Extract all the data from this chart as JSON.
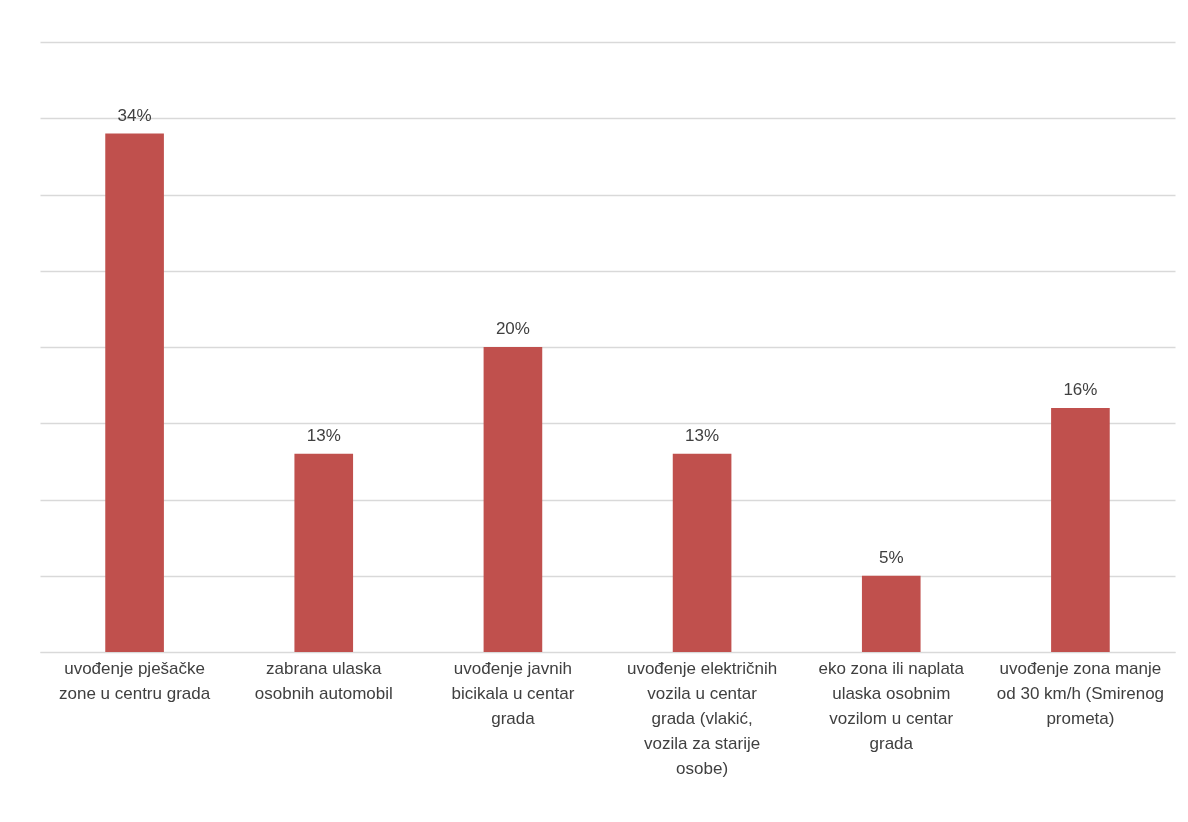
{
  "chart_data": {
    "type": "bar",
    "categories": [
      "uvođenje pješačke zone u centru grada",
      "zabrana ulaska osobnih automobil",
      "uvođenje javnih bicikala u centar grada",
      "uvođenje električnih vozila u centar grada (vlakić, vozila za starije osobe)",
      "eko zona ili naplata ulaska osobnim vozilom u centar grada",
      "uvođenje zona manje od 30 km/h (Smirenog prometa)"
    ],
    "values": [
      34,
      13,
      20,
      13,
      5,
      16
    ],
    "value_labels": [
      "34%",
      "13%",
      "20%",
      "13%",
      "5%",
      "16%"
    ],
    "color": "#c0504d",
    "ylim": [
      0,
      40
    ],
    "yticks": [
      {
        "value": 0,
        "label": null
      },
      {
        "value": 5,
        "label": null
      },
      {
        "value": 10,
        "label": null
      },
      {
        "value": 15,
        "label": null
      },
      {
        "value": 20,
        "label": null
      },
      {
        "value": 25,
        "label": null
      },
      {
        "value": 30,
        "label": null
      },
      {
        "value": 35,
        "label": null
      },
      {
        "value": 40,
        "label": null
      }
    ],
    "grid": "y",
    "tick_labels": "x"
  }
}
